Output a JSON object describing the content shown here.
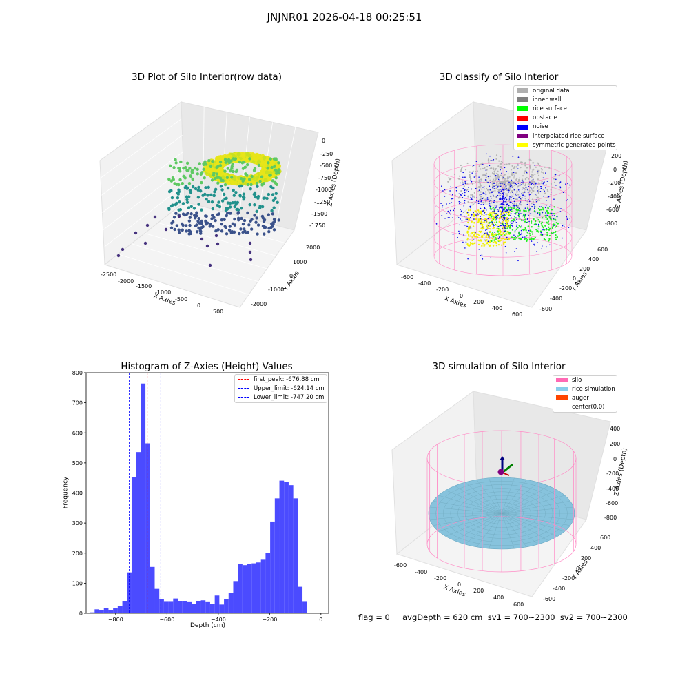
{
  "suptitle": "JNJNR01 2026-04-18 00:25:51",
  "footer": "flag = 0     avgDepth = 620 cm  sv1 = 700~2300  sv2 = 700~2300",
  "chart_data": [
    {
      "type": "scatter",
      "title": "3D Plot of Silo Interior(row data)",
      "xlabel": "X Axies",
      "ylabel": "Y Axies",
      "zlabel": "Z Axies (Depth)",
      "x_ticks": [
        "-2500",
        "-2000",
        "-1500",
        "-1000",
        "-500",
        "0",
        "500"
      ],
      "y_ticks": [
        "-2000",
        "-1000",
        "0",
        "1000",
        "2000"
      ],
      "z_ticks": [
        "0",
        "-250",
        "-500",
        "-750",
        "-1000",
        "-1250",
        "-1500",
        "-1750"
      ],
      "colormap": "viridis"
    },
    {
      "type": "scatter",
      "title": "3D classify of Silo Interior",
      "xlabel": "X Axies",
      "ylabel": "Y Axies",
      "zlabel": "Z Axies (Depth)",
      "x_ticks": [
        "-600",
        "-400",
        "-200",
        "0",
        "200",
        "400",
        "600"
      ],
      "y_ticks": [
        "-600",
        "-400",
        "-200",
        "0",
        "200",
        "400",
        "600"
      ],
      "z_ticks": [
        "200",
        "0",
        "-200",
        "-400",
        "-600",
        "-800"
      ],
      "legend": [
        {
          "label": "original data",
          "color": "#b0b0b0"
        },
        {
          "label": "inner wall",
          "color": "#808080"
        },
        {
          "label": "rice surface",
          "color": "#00ff00"
        },
        {
          "label": "obstacle",
          "color": "#ff0000"
        },
        {
          "label": "noise",
          "color": "#0000ff"
        },
        {
          "label": "interpolated rice surface",
          "color": "#800080"
        },
        {
          "label": "symmetric generated points",
          "color": "#ffff00"
        }
      ]
    },
    {
      "type": "bar",
      "title": "Histogram of Z-Axies (Height) Values",
      "xlabel": "Depth (cm)",
      "ylabel": "Frequency",
      "xlim": [
        -915,
        30
      ],
      "ylim": [
        0,
        800
      ],
      "x_ticks": [
        -800,
        -600,
        -400,
        -200,
        0
      ],
      "y_ticks": [
        0,
        100,
        200,
        300,
        400,
        500,
        600,
        700,
        800
      ],
      "bin_start": -899.9,
      "bin_width": 18.0,
      "values": [
        3,
        13,
        11,
        17,
        10,
        16,
        24,
        40,
        136,
        452,
        536,
        764,
        565,
        154,
        81,
        46,
        38,
        38,
        49,
        40,
        40,
        37,
        30,
        41,
        43,
        37,
        31,
        59,
        29,
        47,
        68,
        107,
        163,
        160,
        165,
        166,
        169,
        178,
        200,
        305,
        382,
        441,
        437,
        426,
        382,
        88,
        38
      ],
      "lines": [
        {
          "label": "first_peak: -676.88 cm",
          "x": -676.88,
          "color": "#ff0000"
        },
        {
          "label": "Upper_limit: -624.14 cm",
          "x": -624.14,
          "color": "#0000ff"
        },
        {
          "label": "Lower_limit: -747.20 cm",
          "x": -747.2,
          "color": "#0000ff"
        }
      ],
      "bar_color": "#4b4bff"
    },
    {
      "type": "surface",
      "title": "3D simulation of Silo Interior",
      "xlabel": "X Axies",
      "ylabel": "Y Axies",
      "zlabel": "Z Axies (Depth)",
      "x_ticks": [
        "-600",
        "-400",
        "-200",
        "0",
        "200",
        "400",
        "600"
      ],
      "y_ticks": [
        "-600",
        "-400",
        "-200",
        "0",
        "200",
        "400",
        "600"
      ],
      "z_ticks": [
        "400",
        "200",
        "0",
        "-200",
        "-400",
        "-600",
        "-800"
      ],
      "legend": [
        {
          "label": "silo",
          "color": "#ff69b4"
        },
        {
          "label": "rice simulation",
          "color": "#87ceeb"
        },
        {
          "label": "auger",
          "color": "#ff4500"
        },
        {
          "label": "center(0,0)",
          "color": "#ffffff"
        }
      ]
    }
  ]
}
